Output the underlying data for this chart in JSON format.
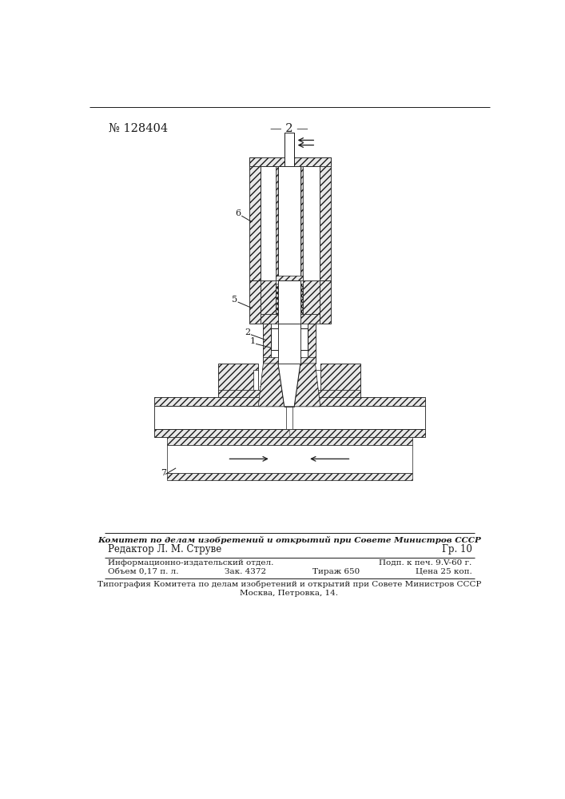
{
  "page_number": "№ 128404",
  "page_label": "— 2 —",
  "bg_color": "#ffffff",
  "line_color": "#1a1a1a",
  "footer_line1": "Комитет по делам изобретений и открытий при Совете Министров СССР",
  "footer_line2_left": "Редактор Л. М. Струве",
  "footer_line2_right": "Гр. 10",
  "footer_line3_left": "Информационно-издательский отдел.",
  "footer_line3_right": "Подп. к печ. 9.V-60 г.",
  "footer_line4_left": "Объем 0,17 п. л.",
  "footer_line4_mid": "Зак. 4372",
  "footer_line4_mid2": "Тираж 650",
  "footer_line4_right": "Цена 25 коп.",
  "footer_line5": "Типография Комитета по делам изобретений и открытий при Совете Министров СССР",
  "footer_line6": "Москва, Петровка, 14."
}
